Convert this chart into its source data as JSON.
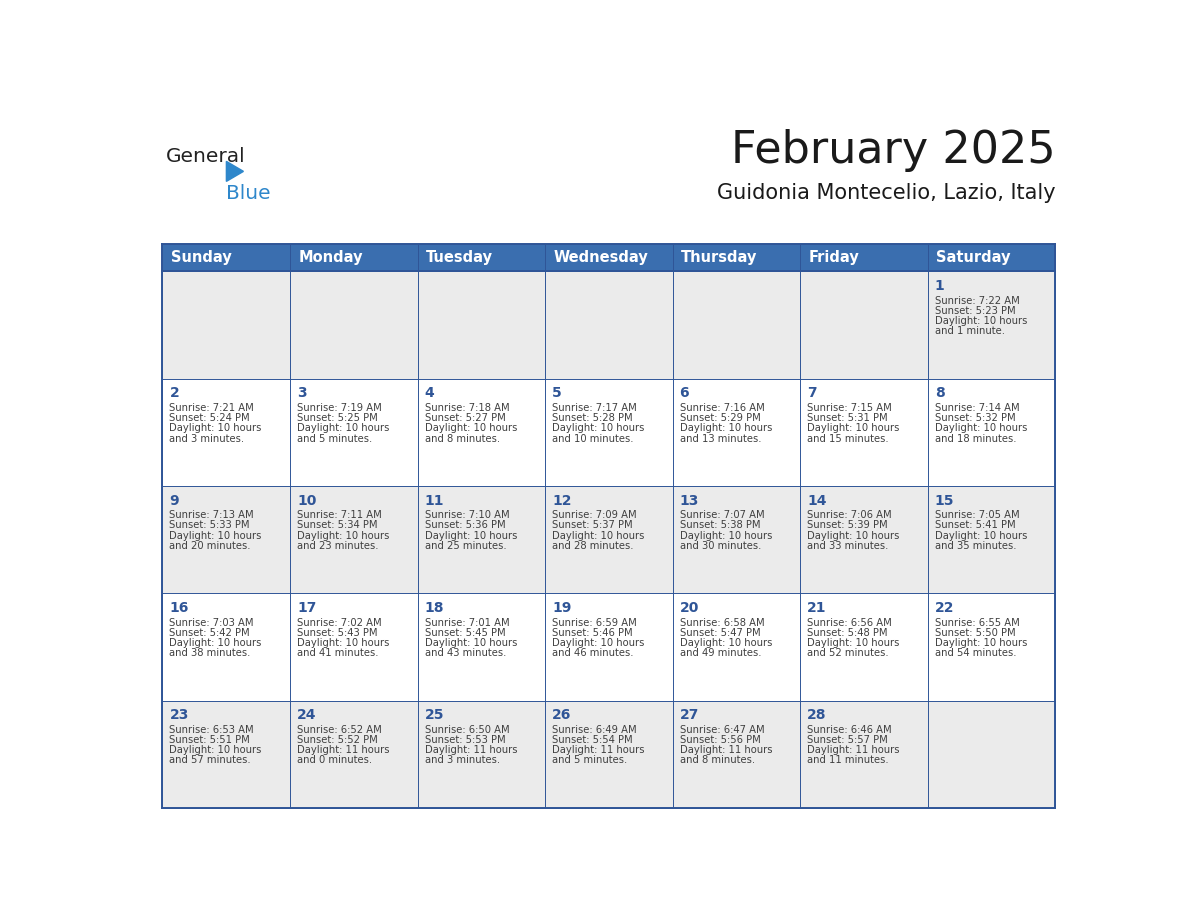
{
  "title": "February 2025",
  "subtitle": "Guidonia Montecelio, Lazio, Italy",
  "header_bg": "#3A6EAF",
  "header_text_color": "#FFFFFF",
  "header_days": [
    "Sunday",
    "Monday",
    "Tuesday",
    "Wednesday",
    "Thursday",
    "Friday",
    "Saturday"
  ],
  "row0_bg": "#EBEBEB",
  "odd_row_bg": "#FFFFFF",
  "even_row_bg": "#EBEBEB",
  "border_color": "#2F5597",
  "day_number_color": "#2F5597",
  "info_text_color": "#404040",
  "logo_general_color": "#222222",
  "logo_blue_color": "#2E87CB",
  "logo_triangle_color": "#2E87CB",
  "calendar_data": [
    {
      "day": 1,
      "col": 6,
      "row": 0,
      "sunrise": "7:22 AM",
      "sunset": "5:23 PM",
      "daylight": "10 hours and 1 minute."
    },
    {
      "day": 2,
      "col": 0,
      "row": 1,
      "sunrise": "7:21 AM",
      "sunset": "5:24 PM",
      "daylight": "10 hours and 3 minutes."
    },
    {
      "day": 3,
      "col": 1,
      "row": 1,
      "sunrise": "7:19 AM",
      "sunset": "5:25 PM",
      "daylight": "10 hours and 5 minutes."
    },
    {
      "day": 4,
      "col": 2,
      "row": 1,
      "sunrise": "7:18 AM",
      "sunset": "5:27 PM",
      "daylight": "10 hours and 8 minutes."
    },
    {
      "day": 5,
      "col": 3,
      "row": 1,
      "sunrise": "7:17 AM",
      "sunset": "5:28 PM",
      "daylight": "10 hours and 10 minutes."
    },
    {
      "day": 6,
      "col": 4,
      "row": 1,
      "sunrise": "7:16 AM",
      "sunset": "5:29 PM",
      "daylight": "10 hours and 13 minutes."
    },
    {
      "day": 7,
      "col": 5,
      "row": 1,
      "sunrise": "7:15 AM",
      "sunset": "5:31 PM",
      "daylight": "10 hours and 15 minutes."
    },
    {
      "day": 8,
      "col": 6,
      "row": 1,
      "sunrise": "7:14 AM",
      "sunset": "5:32 PM",
      "daylight": "10 hours and 18 minutes."
    },
    {
      "day": 9,
      "col": 0,
      "row": 2,
      "sunrise": "7:13 AM",
      "sunset": "5:33 PM",
      "daylight": "10 hours and 20 minutes."
    },
    {
      "day": 10,
      "col": 1,
      "row": 2,
      "sunrise": "7:11 AM",
      "sunset": "5:34 PM",
      "daylight": "10 hours and 23 minutes."
    },
    {
      "day": 11,
      "col": 2,
      "row": 2,
      "sunrise": "7:10 AM",
      "sunset": "5:36 PM",
      "daylight": "10 hours and 25 minutes."
    },
    {
      "day": 12,
      "col": 3,
      "row": 2,
      "sunrise": "7:09 AM",
      "sunset": "5:37 PM",
      "daylight": "10 hours and 28 minutes."
    },
    {
      "day": 13,
      "col": 4,
      "row": 2,
      "sunrise": "7:07 AM",
      "sunset": "5:38 PM",
      "daylight": "10 hours and 30 minutes."
    },
    {
      "day": 14,
      "col": 5,
      "row": 2,
      "sunrise": "7:06 AM",
      "sunset": "5:39 PM",
      "daylight": "10 hours and 33 minutes."
    },
    {
      "day": 15,
      "col": 6,
      "row": 2,
      "sunrise": "7:05 AM",
      "sunset": "5:41 PM",
      "daylight": "10 hours and 35 minutes."
    },
    {
      "day": 16,
      "col": 0,
      "row": 3,
      "sunrise": "7:03 AM",
      "sunset": "5:42 PM",
      "daylight": "10 hours and 38 minutes."
    },
    {
      "day": 17,
      "col": 1,
      "row": 3,
      "sunrise": "7:02 AM",
      "sunset": "5:43 PM",
      "daylight": "10 hours and 41 minutes."
    },
    {
      "day": 18,
      "col": 2,
      "row": 3,
      "sunrise": "7:01 AM",
      "sunset": "5:45 PM",
      "daylight": "10 hours and 43 minutes."
    },
    {
      "day": 19,
      "col": 3,
      "row": 3,
      "sunrise": "6:59 AM",
      "sunset": "5:46 PM",
      "daylight": "10 hours and 46 minutes."
    },
    {
      "day": 20,
      "col": 4,
      "row": 3,
      "sunrise": "6:58 AM",
      "sunset": "5:47 PM",
      "daylight": "10 hours and 49 minutes."
    },
    {
      "day": 21,
      "col": 5,
      "row": 3,
      "sunrise": "6:56 AM",
      "sunset": "5:48 PM",
      "daylight": "10 hours and 52 minutes."
    },
    {
      "day": 22,
      "col": 6,
      "row": 3,
      "sunrise": "6:55 AM",
      "sunset": "5:50 PM",
      "daylight": "10 hours and 54 minutes."
    },
    {
      "day": 23,
      "col": 0,
      "row": 4,
      "sunrise": "6:53 AM",
      "sunset": "5:51 PM",
      "daylight": "10 hours and 57 minutes."
    },
    {
      "day": 24,
      "col": 1,
      "row": 4,
      "sunrise": "6:52 AM",
      "sunset": "5:52 PM",
      "daylight": "11 hours and 0 minutes."
    },
    {
      "day": 25,
      "col": 2,
      "row": 4,
      "sunrise": "6:50 AM",
      "sunset": "5:53 PM",
      "daylight": "11 hours and 3 minutes."
    },
    {
      "day": 26,
      "col": 3,
      "row": 4,
      "sunrise": "6:49 AM",
      "sunset": "5:54 PM",
      "daylight": "11 hours and 5 minutes."
    },
    {
      "day": 27,
      "col": 4,
      "row": 4,
      "sunrise": "6:47 AM",
      "sunset": "5:56 PM",
      "daylight": "11 hours and 8 minutes."
    },
    {
      "day": 28,
      "col": 5,
      "row": 4,
      "sunrise": "6:46 AM",
      "sunset": "5:57 PM",
      "daylight": "11 hours and 11 minutes."
    }
  ]
}
